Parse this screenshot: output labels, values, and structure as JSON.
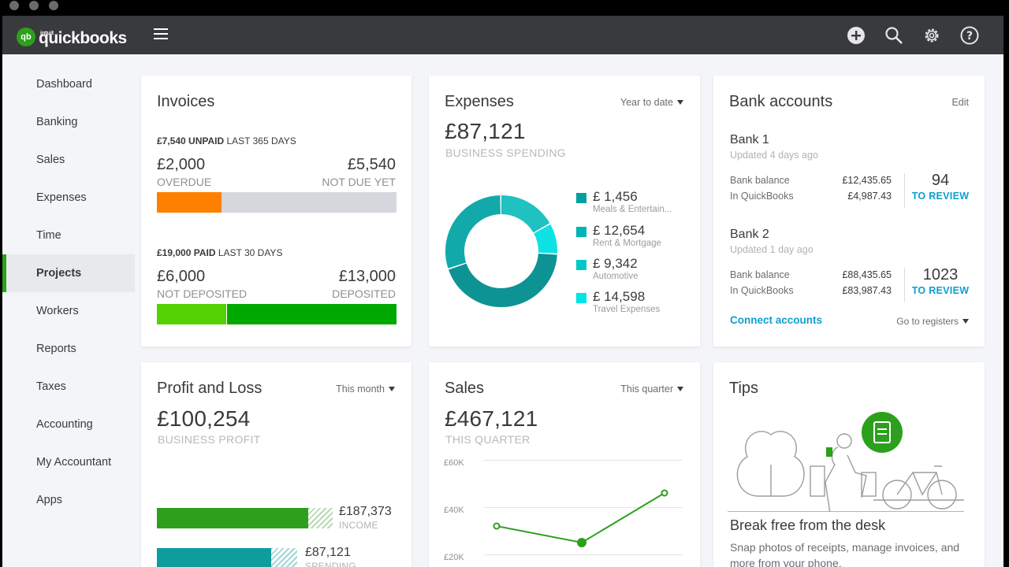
{
  "app": {
    "logo_badge": "qb",
    "logo_small": "intuit",
    "logo_text": "quickbooks"
  },
  "topbar": {
    "icons": [
      "add-icon",
      "search-icon",
      "gear-icon",
      "help-icon"
    ]
  },
  "sidebar": {
    "items": [
      {
        "label": "Dashboard",
        "active": false
      },
      {
        "label": "Banking",
        "active": false
      },
      {
        "label": "Sales",
        "active": false
      },
      {
        "label": "Expenses",
        "active": false
      },
      {
        "label": "Time",
        "active": false
      },
      {
        "label": "Projects",
        "active": true
      },
      {
        "label": "Workers",
        "active": false
      },
      {
        "label": "Reports",
        "active": false
      },
      {
        "label": "Taxes",
        "active": false
      },
      {
        "label": "Accounting",
        "active": false
      },
      {
        "label": "My Accountant",
        "active": false
      },
      {
        "label": "Apps",
        "active": false
      }
    ]
  },
  "invoices": {
    "title": "Invoices",
    "unpaid_amount": "£7,540 UNPAID",
    "unpaid_period": "LAST 365 DAYS",
    "overdue_amount": "£2,000",
    "overdue_label": "OVERDUE",
    "not_due_amount": "£5,540",
    "not_due_label": "NOT DUE YET",
    "paid_amount": "£19,000 PAID",
    "paid_period": "LAST 30 DAYS",
    "not_deposited_amount": "£6,000",
    "not_deposited_label": "NOT DEPOSITED",
    "deposited_amount": "£13,000",
    "deposited_label": "DEPOSITED",
    "overdue_fraction": 0.27,
    "not_deposited_fraction": 0.29,
    "colors": {
      "overdue": "#ff8000",
      "not_due": "#d4d7dc",
      "not_deposited": "#53d100",
      "deposited": "#00a800"
    }
  },
  "expenses": {
    "title": "Expenses",
    "period": "Year to date",
    "total": "£87,121",
    "total_label": "BUSINESS SPENDING",
    "categories": [
      {
        "amount": "£ 1,456",
        "name": "Meals & Entertain...",
        "color": "#00a0a0"
      },
      {
        "amount": "£ 12,654",
        "name": "Rent & Mortgage",
        "color": "#00b5b5"
      },
      {
        "amount": "£ 9,342",
        "name": "Automotive",
        "color": "#00c8c8"
      },
      {
        "amount": "£ 14,598",
        "name": "Travel Expenses",
        "color": "#00e5e5"
      }
    ],
    "donut_segments": [
      {
        "fraction": 0.17,
        "color": "#20c1c1"
      },
      {
        "fraction": 0.09,
        "color": "#0ee2e2"
      },
      {
        "fraction": 0.44,
        "color": "#0e9394"
      },
      {
        "fraction": 0.3,
        "color": "#12a9aa"
      }
    ]
  },
  "bank": {
    "title": "Bank accounts",
    "edit": "Edit",
    "accounts": [
      {
        "name": "Bank 1",
        "updated": "Updated 4 days ago",
        "bank_balance_label": "Bank balance",
        "bank_balance": "£12,435.65",
        "qb_label": "In QuickBooks",
        "qb_balance": "£4,987.43",
        "review_count": "94",
        "review_label": "TO REVIEW"
      },
      {
        "name": "Bank 2",
        "updated": "Updated 1 day ago",
        "bank_balance_label": "Bank balance",
        "bank_balance": "£88,435.65",
        "qb_label": "In QuickBooks",
        "qb_balance": "£83,987.43",
        "review_count": "1023",
        "review_label": "TO REVIEW"
      }
    ],
    "connect": "Connect accounts",
    "registers": "Go to registers"
  },
  "pnl": {
    "title": "Profit and Loss",
    "period": "This month",
    "total": "£100,254",
    "total_label": "BUSINESS PROFIT",
    "income_amount": "£187,373",
    "income_label": "INCOME",
    "spending_amount": "£87,121",
    "spending_label": "SPENDING",
    "income_fraction": 0.86,
    "spending_fraction": 0.7
  },
  "sales": {
    "title": "Sales",
    "period": "This quarter",
    "total": "£467,121",
    "total_label": "THIS QUARTER",
    "chart_data": {
      "type": "line",
      "y_ticks": [
        "£60K",
        "£40K",
        "£20K"
      ],
      "ylim": [
        0,
        60000
      ],
      "values": [
        32000,
        25000,
        46000
      ],
      "color": "#2ca01c"
    }
  },
  "tips": {
    "title": "Tips",
    "heading": "Break free from the desk",
    "body": "Snap photos of receipts, manage invoices, and more from your phone."
  }
}
